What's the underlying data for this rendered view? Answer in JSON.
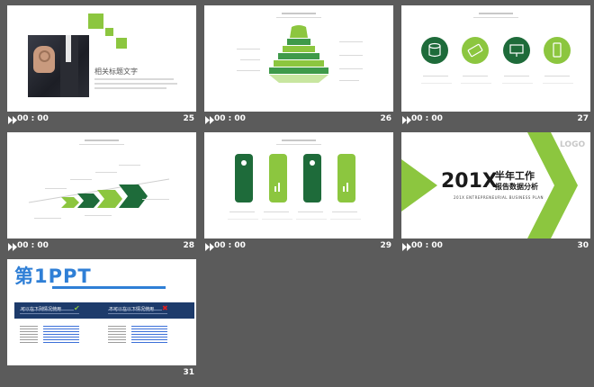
{
  "accent": "#8cc63f",
  "dark_green": "#1e6b3a",
  "slides": [
    {
      "number": "25",
      "time": "00 : 00",
      "heading": "相关标题文字"
    },
    {
      "number": "26",
      "time": "00 : 00"
    },
    {
      "number": "27",
      "time": "00 : 00"
    },
    {
      "number": "28",
      "time": "00 : 00"
    },
    {
      "number": "29",
      "time": "00 : 00"
    },
    {
      "number": "30",
      "time": "00 : 00",
      "big_title": "201X",
      "title_cn": "半年工作",
      "subtitle_cn": "报告数据分析",
      "subtitle_en": "201X ENTREPRENEURIAL BUSINESS PLAN",
      "logo": "LOGO"
    },
    {
      "number": "31",
      "time": "",
      "logo_text": "第1PPT",
      "left_header": "可以在下列情况使用",
      "right_header": "不可以在以下情况使用"
    }
  ]
}
